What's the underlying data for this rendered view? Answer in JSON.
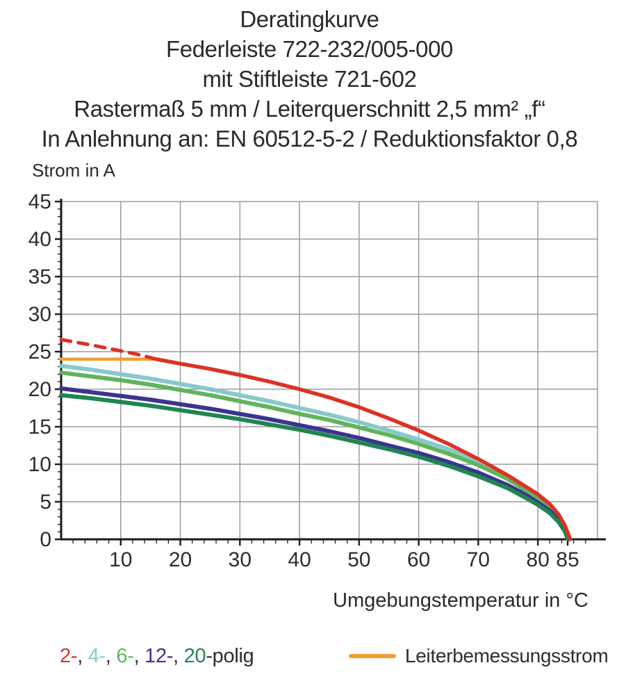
{
  "title": {
    "lines": [
      "Deratingkurve",
      "Federleiste 722-232/005-000",
      "mit Stiftleiste 721-602",
      "Rastermaß 5 mm / Leiterquerschnitt 2,5 mm² „f“",
      "In Anlehnung an: EN 60512-5-2 / Reduktionsfaktor 0,8"
    ]
  },
  "chart": {
    "y_axis_label": "Strom in A",
    "x_axis_label": "Umgebungstemperatur in °C"
  },
  "legend": {
    "pole_items": [
      {
        "label": "2-",
        "color": "#dc3226"
      },
      {
        "label": "4-",
        "color": "#87c9cb"
      },
      {
        "label": "6-",
        "color": "#61b45c"
      },
      {
        "label": "12-",
        "color": "#3a3490"
      },
      {
        "label": "20",
        "color": "#1f8551"
      }
    ],
    "separator": ", ",
    "suffix": "-polig",
    "text_color": "#2d2d2d",
    "rated_current_label": "Leiterbemessungsstrom",
    "rated_current_color": "#f09e33"
  },
  "colors": {
    "grid": "#9b9b9b",
    "axis": "#1a1a1a",
    "tick_text": "#2d2d2d"
  },
  "chart_data": {
    "type": "line",
    "title": "Deratingkurve Federleiste 722-232/005-000 mit Stiftleiste 721-602",
    "xlabel": "Umgebungstemperatur in °C",
    "ylabel": "Strom in A",
    "xlim": [
      0,
      90
    ],
    "ylim": [
      0,
      45
    ],
    "grid": true,
    "x_gridlines": [
      10,
      20,
      30,
      40,
      50,
      60,
      70,
      80,
      90
    ],
    "x_tick_labels": [
      10,
      20,
      30,
      40,
      50,
      60,
      70,
      80,
      85
    ],
    "y_tick_labels": [
      0,
      5,
      10,
      15,
      20,
      25,
      30,
      35,
      40,
      45
    ],
    "legend_position": "bottom",
    "series": [
      {
        "id": "leiterbemessungsstrom",
        "name": "Leiterbemessungsstrom",
        "color": "#f09e33",
        "style": "solid",
        "width": 4.5,
        "points": [
          [
            0,
            24
          ],
          [
            16.5,
            24
          ]
        ]
      },
      {
        "id": "4-polig",
        "name": "4-polig",
        "color": "#87c9cb",
        "style": "solid",
        "width": 6,
        "points": [
          [
            0,
            23.1
          ],
          [
            5,
            22.6
          ],
          [
            10,
            22.0
          ],
          [
            15,
            21.4
          ],
          [
            20,
            20.7
          ],
          [
            25,
            20.0
          ],
          [
            30,
            19.2
          ],
          [
            35,
            18.4
          ],
          [
            40,
            17.5
          ],
          [
            45,
            16.6
          ],
          [
            50,
            15.6
          ],
          [
            55,
            14.5
          ],
          [
            60,
            13.3
          ],
          [
            65,
            12.0
          ],
          [
            70,
            10.4
          ],
          [
            75,
            8.4
          ],
          [
            78,
            6.9
          ],
          [
            80,
            5.8
          ],
          [
            82,
            4.5
          ],
          [
            83.5,
            3.1
          ],
          [
            84.5,
            1.7
          ],
          [
            85.1,
            0.3
          ],
          [
            85.3,
            0
          ]
        ]
      },
      {
        "id": "6-polig",
        "name": "6-polig",
        "color": "#61b45c",
        "style": "solid",
        "width": 6,
        "points": [
          [
            0,
            22.2
          ],
          [
            5,
            21.7
          ],
          [
            10,
            21.2
          ],
          [
            15,
            20.6
          ],
          [
            20,
            19.9
          ],
          [
            25,
            19.2
          ],
          [
            30,
            18.4
          ],
          [
            35,
            17.6
          ],
          [
            40,
            16.7
          ],
          [
            45,
            15.9
          ],
          [
            50,
            14.9
          ],
          [
            55,
            13.9
          ],
          [
            60,
            12.7
          ],
          [
            65,
            11.4
          ],
          [
            70,
            9.9
          ],
          [
            75,
            8.0
          ],
          [
            78,
            6.5
          ],
          [
            80,
            5.4
          ],
          [
            82,
            4.2
          ],
          [
            83.5,
            2.9
          ],
          [
            84.5,
            1.5
          ],
          [
            85,
            0.3
          ],
          [
            85.2,
            0
          ]
        ]
      },
      {
        "id": "12-polig",
        "name": "12-polig",
        "color": "#3a3490",
        "style": "solid",
        "width": 6,
        "points": [
          [
            0,
            20.1
          ],
          [
            5,
            19.6
          ],
          [
            10,
            19.1
          ],
          [
            15,
            18.6
          ],
          [
            20,
            18.0
          ],
          [
            25,
            17.4
          ],
          [
            30,
            16.7
          ],
          [
            35,
            16.0
          ],
          [
            40,
            15.2
          ],
          [
            45,
            14.4
          ],
          [
            50,
            13.5
          ],
          [
            55,
            12.5
          ],
          [
            60,
            11.5
          ],
          [
            65,
            10.3
          ],
          [
            70,
            8.9
          ],
          [
            75,
            7.2
          ],
          [
            78,
            5.9
          ],
          [
            80,
            4.9
          ],
          [
            82,
            3.8
          ],
          [
            83.5,
            2.6
          ],
          [
            84.5,
            1.3
          ],
          [
            85,
            0.2
          ],
          [
            85.2,
            0
          ]
        ]
      },
      {
        "id": "20-polig",
        "name": "20-polig",
        "color": "#1f8551",
        "style": "solid",
        "width": 6,
        "points": [
          [
            0,
            19.2
          ],
          [
            5,
            18.8
          ],
          [
            10,
            18.3
          ],
          [
            15,
            17.8
          ],
          [
            20,
            17.2
          ],
          [
            25,
            16.6
          ],
          [
            30,
            16.0
          ],
          [
            35,
            15.3
          ],
          [
            40,
            14.6
          ],
          [
            45,
            13.8
          ],
          [
            50,
            12.9
          ],
          [
            55,
            12.0
          ],
          [
            60,
            11.0
          ],
          [
            65,
            9.8
          ],
          [
            70,
            8.4
          ],
          [
            75,
            6.8
          ],
          [
            78,
            5.5
          ],
          [
            80,
            4.6
          ],
          [
            82,
            3.5
          ],
          [
            83.5,
            2.3
          ],
          [
            84.5,
            1.1
          ],
          [
            85,
            0.1
          ],
          [
            85.1,
            0
          ]
        ]
      },
      {
        "id": "2-polig",
        "name": "2-polig",
        "color": "#dc3226",
        "style": "solid",
        "width": 5.5,
        "points": [
          [
            16,
            24.0
          ],
          [
            20,
            23.4
          ],
          [
            25,
            22.7
          ],
          [
            30,
            21.9
          ],
          [
            35,
            21.0
          ],
          [
            40,
            20.0
          ],
          [
            45,
            18.9
          ],
          [
            50,
            17.6
          ],
          [
            55,
            16.1
          ],
          [
            60,
            14.5
          ],
          [
            65,
            12.7
          ],
          [
            70,
            10.7
          ],
          [
            75,
            8.5
          ],
          [
            78,
            7.0
          ],
          [
            80,
            6.0
          ],
          [
            82,
            4.7
          ],
          [
            83.5,
            3.3
          ],
          [
            84.5,
            1.9
          ],
          [
            85.2,
            0.5
          ],
          [
            85.4,
            0
          ]
        ]
      },
      {
        "id": "2-polig-extrapolation",
        "name": "2-polig (gestrichelt)",
        "color": "#dc3226",
        "style": "dashed",
        "width": 5,
        "points": [
          [
            0,
            26.6
          ],
          [
            5,
            25.9
          ],
          [
            10,
            25.1
          ],
          [
            13,
            24.6
          ],
          [
            16,
            24.0
          ]
        ]
      }
    ]
  }
}
